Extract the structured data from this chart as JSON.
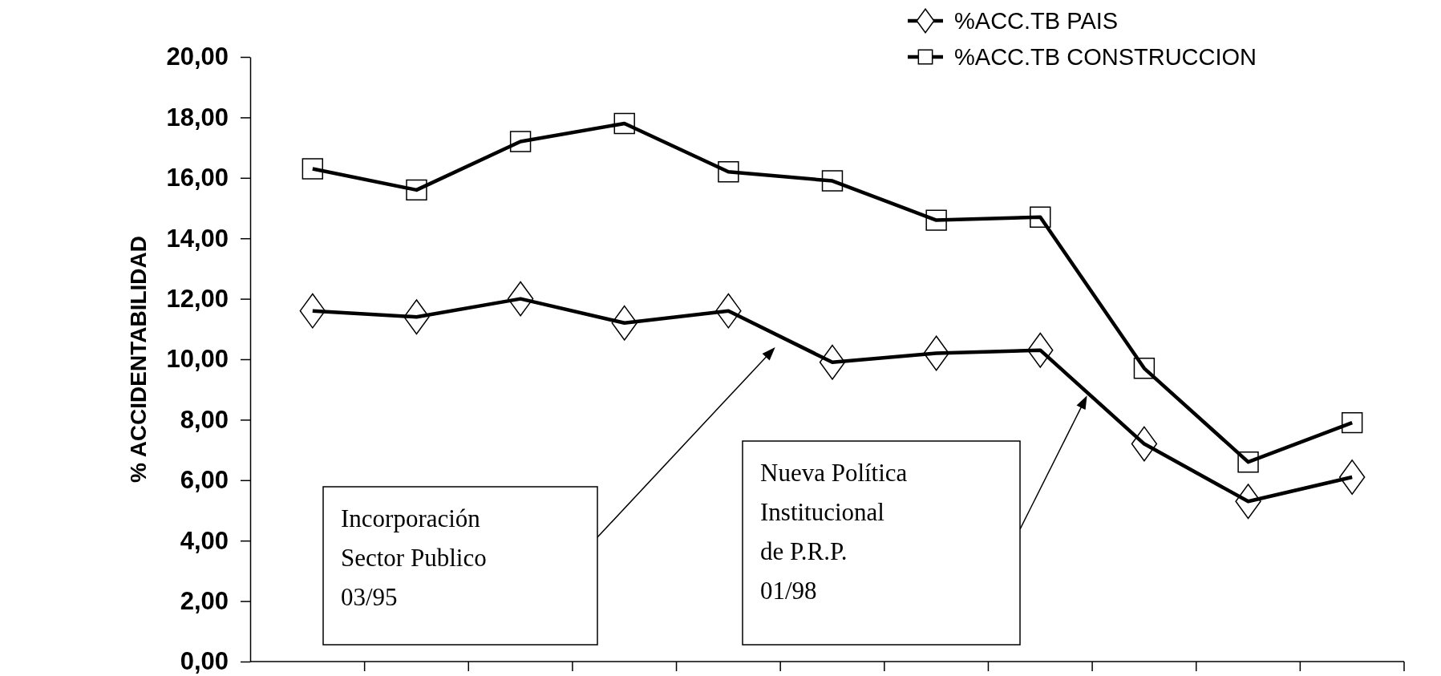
{
  "chart_data": {
    "type": "line",
    "ylabel": "% ACCIDENTABILIDAD",
    "categories": [
      null,
      null,
      null,
      null,
      null,
      null,
      null,
      null,
      null,
      null,
      null
    ],
    "series": [
      {
        "name": "%ACC.TB PAIS",
        "color": "#000000",
        "marker": "diamond",
        "values": [
          11.6,
          11.4,
          12.0,
          11.2,
          11.6,
          9.9,
          10.2,
          10.3,
          7.2,
          5.3,
          6.1
        ]
      },
      {
        "name": "%ACC.TB CONSTRUCCION",
        "color": "#000000",
        "marker": "square",
        "values": [
          16.3,
          15.6,
          17.2,
          17.8,
          16.2,
          15.9,
          14.6,
          14.7,
          9.7,
          6.6,
          7.9
        ]
      }
    ],
    "ylim": [
      0,
      20
    ],
    "yticks": [
      {
        "value": 0,
        "label": "0,00"
      },
      {
        "value": 2,
        "label": "2,00"
      },
      {
        "value": 4,
        "label": "4,00"
      },
      {
        "value": 6,
        "label": "6,00"
      },
      {
        "value": 8,
        "label": "8,00"
      },
      {
        "value": 10,
        "label": "10,00"
      },
      {
        "value": 12,
        "label": "12,00"
      },
      {
        "value": 14,
        "label": "14,00"
      },
      {
        "value": 16,
        "label": "16,00"
      },
      {
        "value": 18,
        "label": "18,00"
      },
      {
        "value": 20,
        "label": "20,00"
      }
    ],
    "grid": false,
    "legend": "top right",
    "line_style": "solid",
    "annotations": [
      "Incorporación\nSector Publico\n03/95",
      "Nueva Política\nInstitucional\nde P.R.P.\n01/98"
    ]
  }
}
